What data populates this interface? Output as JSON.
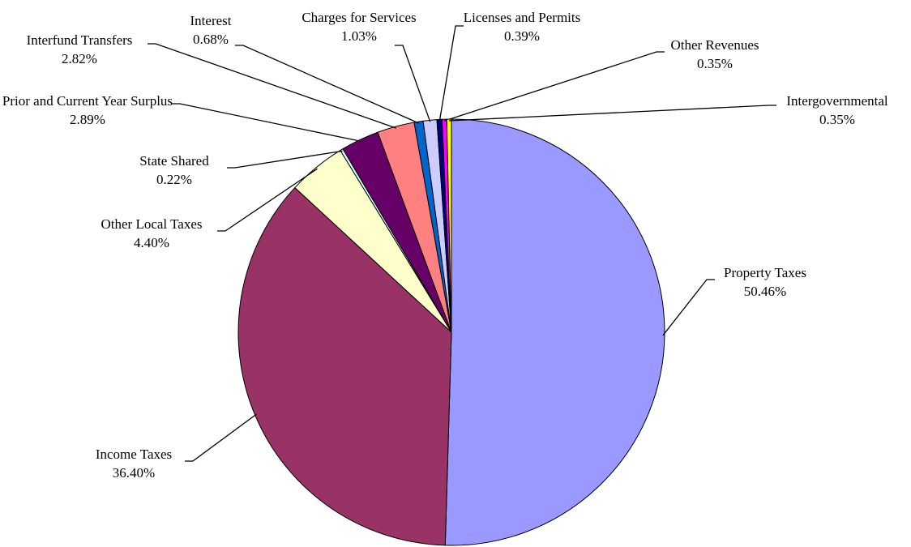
{
  "chart_data": {
    "type": "pie",
    "categories": [
      "Property Taxes",
      "Income Taxes",
      "Other Local Taxes",
      "State Shared",
      "Prior and Current Year Surplus",
      "Interfund Transfers",
      "Interest",
      "Charges for Services",
      "Licenses and Permits",
      "Other Revenues",
      "Intergovernmental"
    ],
    "values": [
      50.46,
      36.4,
      4.4,
      0.22,
      2.89,
      2.82,
      0.68,
      1.03,
      0.39,
      0.35,
      0.35
    ],
    "value_labels": [
      "50.46%",
      "36.40%",
      "4.40%",
      "0.22%",
      "2.89%",
      "2.82%",
      "0.68%",
      "1.03%",
      "0.39%",
      "0.35%",
      "0.35%"
    ],
    "colors": [
      "#9999FF",
      "#993366",
      "#FFFFCC",
      "#CCFFFF",
      "#660066",
      "#FF8080",
      "#0066CC",
      "#CCCCFF",
      "#000080",
      "#FF00FF",
      "#FFFF00"
    ]
  }
}
